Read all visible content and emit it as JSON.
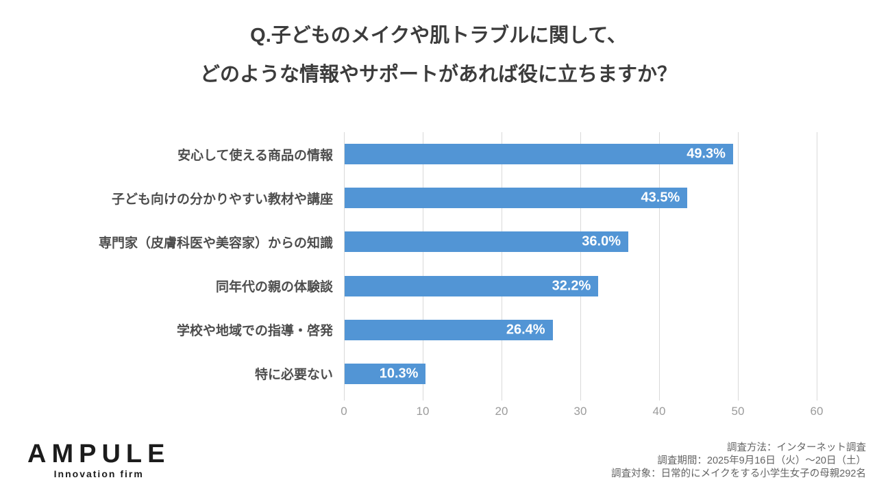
{
  "title": {
    "line1": "Q.子どものメイクや肌トラブルに関して、",
    "line2": "どのような情報やサポートがあれば役に立ちますか？"
  },
  "chart_data": {
    "type": "bar",
    "orientation": "horizontal",
    "categories": [
      "安心して使える商品の情報",
      "子ども向けの分かりやすい教材や講座",
      "専門家（皮膚科医や美容家）からの知識",
      "同年代の親の体験談",
      "学校や地域での指導・啓発",
      "特に必要ない"
    ],
    "values": [
      49.3,
      43.5,
      36.0,
      32.2,
      26.4,
      10.3
    ],
    "value_labels": [
      "49.3%",
      "43.5%",
      "36.0%",
      "32.2%",
      "26.4%",
      "10.3%"
    ],
    "xlim": [
      0,
      60
    ],
    "x_ticks": [
      0,
      10,
      20,
      30,
      40,
      50,
      60
    ],
    "grid": true,
    "legend": "none",
    "bar_color": "#5295d5",
    "gridline_color": "#d9d9d9",
    "value_label_color": "#ffffff"
  },
  "footer": {
    "logo": {
      "name": "AMPULE",
      "tagline": "Innovation firm"
    },
    "notes": [
      "調査方法：インターネット調査",
      "調査期間：2025年9月16日（火）〜20日（土）",
      "調査対象：日常的にメイクをする小学生女子の母親292名"
    ]
  }
}
